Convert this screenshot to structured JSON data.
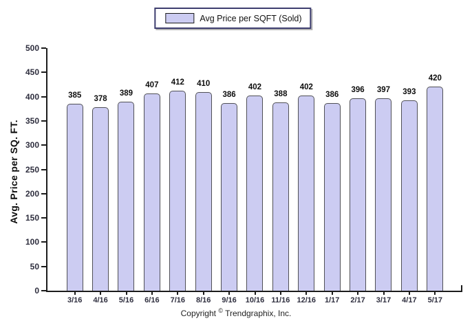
{
  "legend": {
    "label": "Avg Price per SQFT (Sold)"
  },
  "footer": {
    "copyright_prefix": "Copyright",
    "copyright_symbol": "©",
    "copyright_suffix": " Trendgraphix, Inc."
  },
  "colors": {
    "bar_fill": "#ccccf2",
    "bar_border": "#4f4f55",
    "legend_border": "#3c3c6e",
    "axis": "#1b1b1b",
    "tick_label": "#2e2e3e"
  },
  "chart_data": {
    "type": "bar",
    "title": "",
    "xlabel": "",
    "ylabel": "Avg. Price per SQ. FT.",
    "legend_entries": [
      "Avg Price per SQFT (Sold)"
    ],
    "legend_position": "top-center",
    "grid": false,
    "ylim": [
      0,
      500
    ],
    "y_ticks": [
      0,
      50,
      100,
      150,
      200,
      250,
      300,
      350,
      400,
      450,
      500
    ],
    "categories": [
      "3/16",
      "4/16",
      "5/16",
      "6/16",
      "7/16",
      "8/16",
      "9/16",
      "10/16",
      "11/16",
      "12/16",
      "1/17",
      "2/17",
      "3/17",
      "4/17",
      "5/17"
    ],
    "values": [
      385,
      378,
      389,
      407,
      412,
      410,
      386,
      402,
      388,
      402,
      386,
      396,
      397,
      393,
      420
    ],
    "bar_value_labels_shown": true
  }
}
